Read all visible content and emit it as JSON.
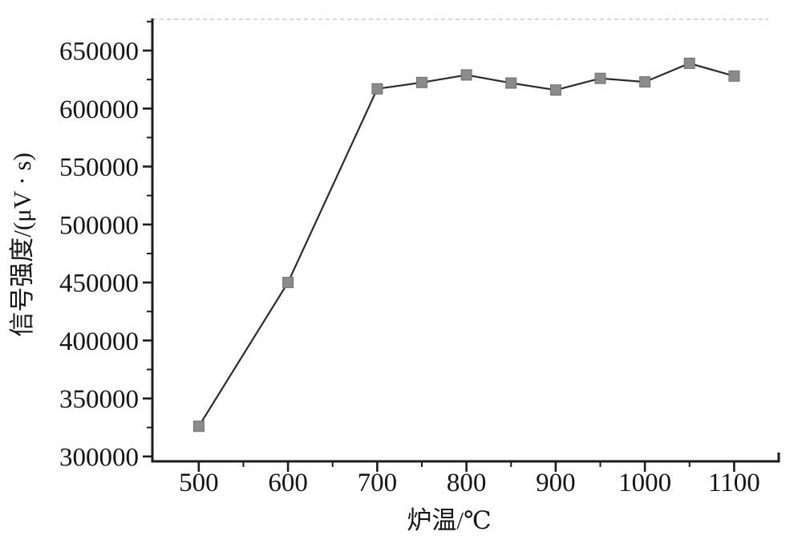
{
  "figure": {
    "background_color": "#ffffff",
    "frame": {
      "axis_color": "#1c1c1c",
      "top_border_style": "dashed",
      "top_border_color": "#c9c9c9",
      "right_border": "short-stub-bottom-corner"
    }
  },
  "chart_data": {
    "type": "line",
    "title": "",
    "xlabel": "炉温/℃",
    "ylabel": "信号强度/(μV · s)",
    "x": [
      500,
      600,
      700,
      750,
      800,
      850,
      900,
      950,
      1000,
      1050,
      1100
    ],
    "y": [
      326000,
      450000,
      617000,
      622500,
      629000,
      622000,
      616000,
      626000,
      623000,
      639000,
      628000
    ],
    "series": [
      {
        "name": "信号强度",
        "values": [
          326000,
          450000,
          617000,
          622500,
          629000,
          622000,
          616000,
          626000,
          623000,
          639000,
          628000
        ]
      }
    ],
    "xlim": [
      448,
      1150
    ],
    "ylim": [
      295800,
      677000
    ],
    "x_major_ticks": [
      500,
      600,
      700,
      800,
      900,
      1000,
      1100
    ],
    "x_minor_ticks": [
      550,
      650,
      750,
      850,
      950,
      1050
    ],
    "y_major_ticks": [
      300000,
      350000,
      400000,
      450000,
      500000,
      550000,
      600000,
      650000
    ],
    "y_minor_ticks": [
      325000,
      375000,
      425000,
      475000,
      525000,
      575000,
      625000,
      675000
    ],
    "grid": false,
    "legend_position": "none",
    "line_color": "#2b2b2b",
    "line_width": 2.2,
    "marker": {
      "shape": "square",
      "size": 13,
      "fill": "#8b8b8b",
      "stroke": "#6f6f6f"
    }
  }
}
